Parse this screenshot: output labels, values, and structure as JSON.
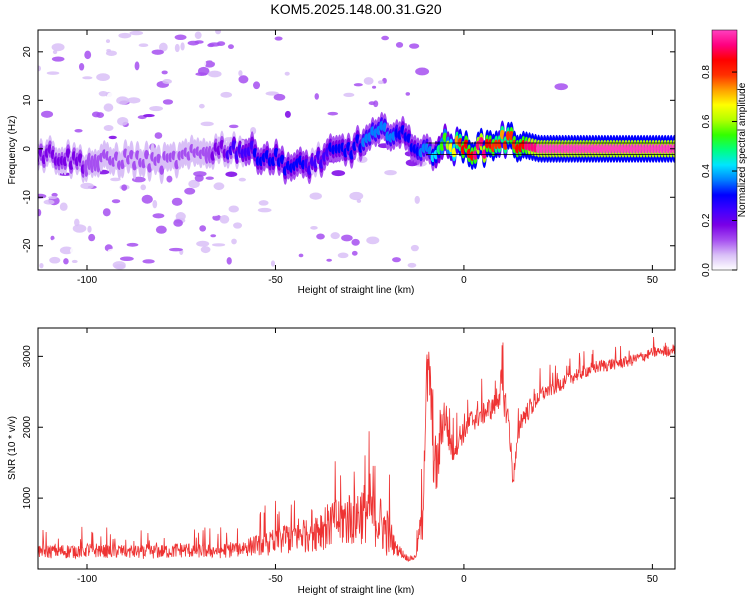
{
  "chart_data": [
    {
      "type": "heatmap",
      "title": "KOM5.2025.148.00.31.G20",
      "xlabel": "Height of straight line (km)",
      "ylabel": "Frequency (Hz)",
      "xlim": [
        -113,
        56
      ],
      "ylim": [
        -25,
        24.5
      ],
      "xticks": [
        -100,
        -50,
        0,
        50
      ],
      "yticks": [
        -20,
        -10,
        0,
        10,
        20
      ],
      "colorbar": {
        "label": "Normalized spectral amplitude",
        "range": [
          0,
          0.97
        ],
        "ticks": [
          "0.0",
          "0.2",
          "0.4",
          "0.6",
          "0.8"
        ],
        "tick_values": [
          0.0,
          0.2,
          0.4,
          0.6,
          0.8
        ],
        "colors": [
          "#ffffff",
          "#d9bff7",
          "#a64ff0",
          "#7a00e6",
          "#3f00ff",
          "#0000ff",
          "#0080ff",
          "#00e5ff",
          "#00ff80",
          "#33ff00",
          "#b3ff00",
          "#ffff00",
          "#ffa000",
          "#ff3000",
          "#ff0000",
          "#ff0080",
          "#ff40c0"
        ]
      },
      "ridge": {
        "x": [
          -110,
          -100,
          -90,
          -80,
          -70,
          -65,
          -60,
          -55,
          -50,
          -45,
          -40,
          -35,
          -30,
          -25,
          -20,
          -15,
          -10,
          -5,
          0,
          5,
          10,
          15,
          20,
          30,
          40,
          50,
          56
        ],
        "freq_hz": [
          -1,
          -3,
          -2,
          -3,
          -1,
          0,
          0,
          -1,
          -2,
          -4,
          -3,
          -1,
          0,
          2,
          4,
          2,
          -1,
          1,
          0,
          0,
          2,
          1,
          0,
          0,
          0,
          0,
          0
        ],
        "amplitude": [
          0.18,
          0.15,
          0.12,
          0.12,
          0.12,
          0.18,
          0.25,
          0.28,
          0.3,
          0.3,
          0.25,
          0.28,
          0.3,
          0.35,
          0.35,
          0.3,
          0.35,
          0.55,
          0.85,
          0.9,
          0.75,
          0.85,
          0.95,
          0.95,
          0.95,
          0.95,
          0.95
        ]
      }
    },
    {
      "type": "line",
      "xlabel": "Height of straight line (km)",
      "ylabel": "SNR (10 * v/v)",
      "xlim": [
        -113,
        56
      ],
      "ylim": [
        0,
        3400
      ],
      "xticks": [
        -100,
        -50,
        0,
        50
      ],
      "yticks": [
        1000,
        2000,
        3000
      ],
      "color": "#ee3333",
      "series": [
        {
          "x": [
            -113,
            -105,
            -100,
            -95,
            -90,
            -85,
            -80,
            -75,
            -70,
            -65,
            -60,
            -55,
            -50,
            -45,
            -40,
            -35,
            -30,
            -25,
            -20,
            -18,
            -15,
            -13,
            -11,
            -10,
            -9,
            -8,
            -7,
            -6,
            -5,
            -4,
            -3,
            -2,
            0,
            2,
            5,
            8,
            10,
            12,
            13,
            15,
            18,
            20,
            25,
            30,
            35,
            40,
            45,
            50,
            56
          ],
          "y": [
            250,
            250,
            270,
            260,
            250,
            240,
            250,
            270,
            260,
            260,
            290,
            340,
            400,
            470,
            560,
            650,
            730,
            840,
            500,
            300,
            150,
            160,
            700,
            2600,
            2700,
            1500,
            1400,
            2000,
            2200,
            1900,
            1700,
            1800,
            1950,
            2100,
            2200,
            2300,
            2600,
            2050,
            1250,
            2100,
            2300,
            2450,
            2600,
            2750,
            2850,
            2900,
            2950,
            3050,
            3100
          ],
          "noise_amplitude": [
            150,
            150,
            160,
            150,
            150,
            140,
            150,
            160,
            150,
            160,
            180,
            220,
            300,
            380,
            450,
            520,
            600,
            680,
            500,
            150,
            60,
            60,
            500,
            700,
            700,
            600,
            600,
            500,
            450,
            400,
            350,
            300,
            250,
            250,
            250,
            250,
            400,
            300,
            200,
            220,
            200,
            180,
            160,
            150,
            140,
            130,
            120,
            120,
            120
          ]
        }
      ]
    }
  ]
}
